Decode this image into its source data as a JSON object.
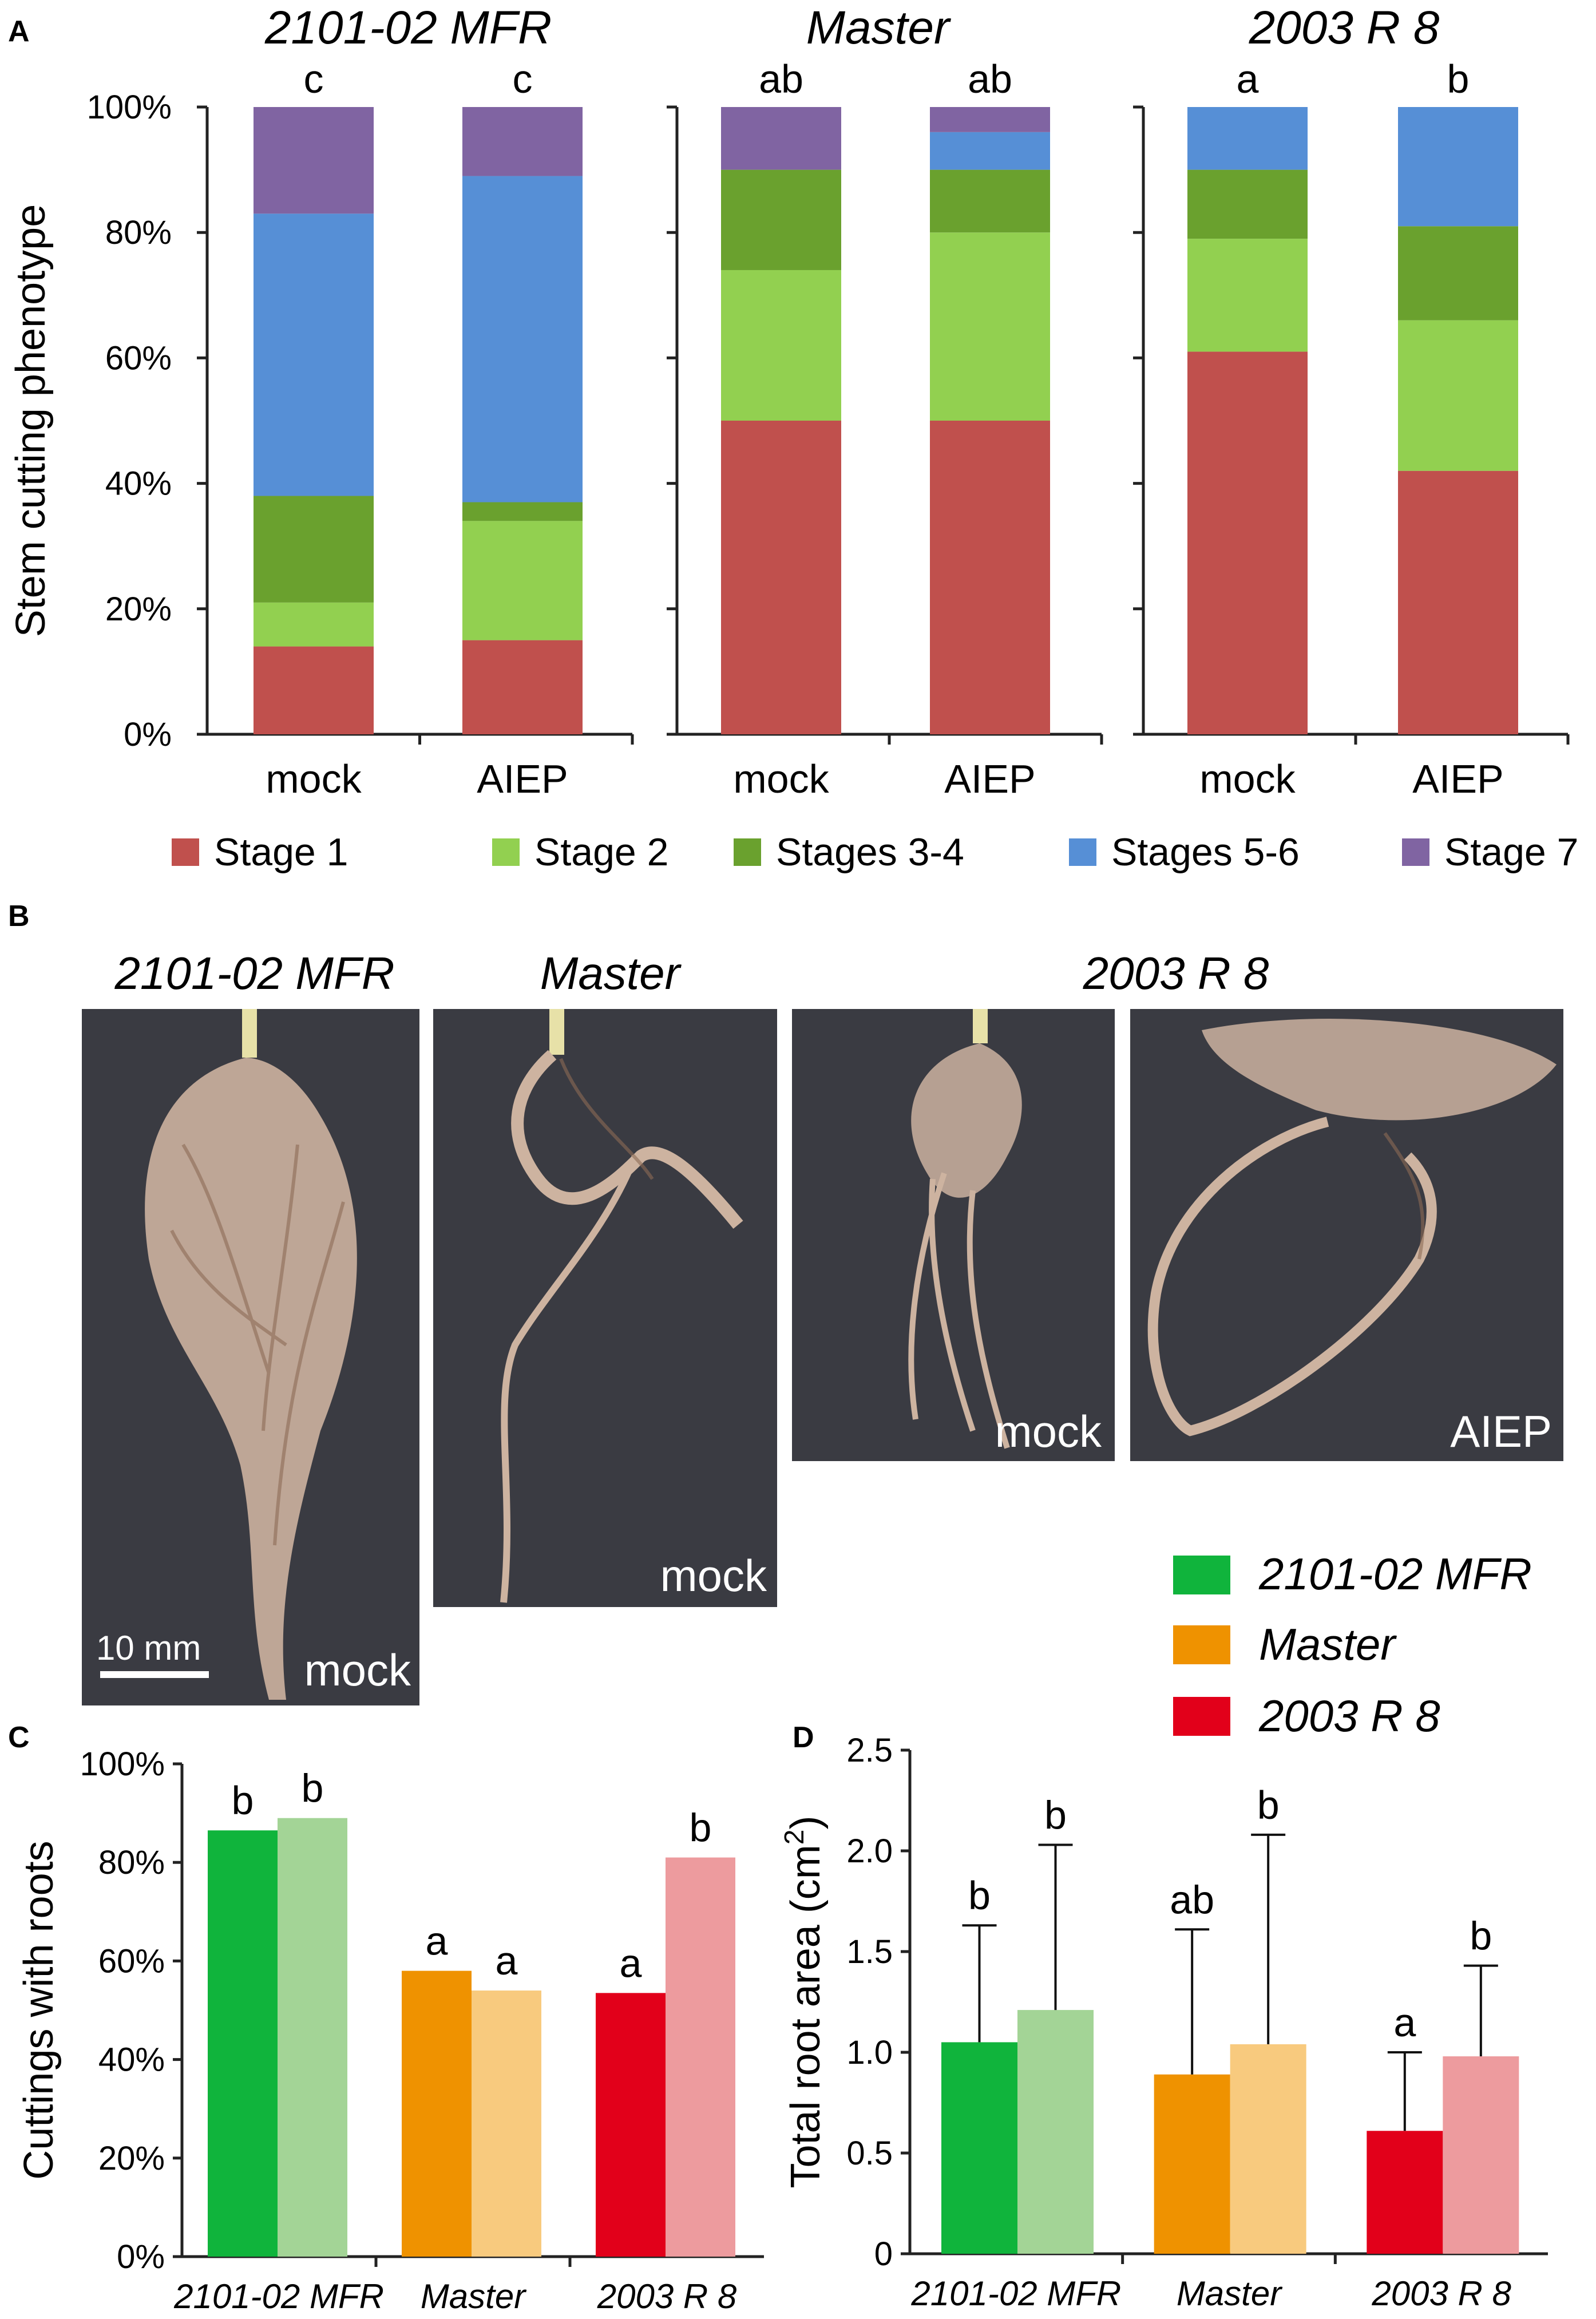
{
  "panels": {
    "a": "A",
    "b": "B",
    "c": "C",
    "d": "D"
  },
  "stage_colors": {
    "Stage 1": "#c0504d",
    "Stage 2": "#92d050",
    "Stages 3-4": "#6aa12e",
    "Stages 5-6": "#568fd6",
    "Stage 7": "#8064a2"
  },
  "chart_data": [
    {
      "id": "A",
      "type": "bar",
      "stacked": true,
      "ylabel": "Stem cutting phenotype",
      "yticks": [
        "0%",
        "20%",
        "40%",
        "60%",
        "80%",
        "100%"
      ],
      "ylim": [
        0,
        100
      ],
      "stages": [
        "Stage 1",
        "Stage 2",
        "Stages 3-4",
        "Stages 5-6",
        "Stage 7"
      ],
      "groups": [
        {
          "title": "2101-02 MFR",
          "bars": [
            {
              "category": "mock",
              "letter": "c",
              "values": [
                14,
                7,
                17,
                45,
                17
              ]
            },
            {
              "category": "AIEP",
              "letter": "c",
              "values": [
                15,
                19,
                3,
                52,
                11
              ]
            }
          ]
        },
        {
          "title": "Master",
          "bars": [
            {
              "category": "mock",
              "letter": "ab",
              "values": [
                50,
                24,
                16,
                0,
                10
              ]
            },
            {
              "category": "AIEP",
              "letter": "ab",
              "values": [
                50,
                30,
                10,
                6,
                4
              ]
            }
          ]
        },
        {
          "title": "2003 R 8",
          "bars": [
            {
              "category": "mock",
              "letter": "a",
              "values": [
                61,
                18,
                11,
                10,
                0
              ]
            },
            {
              "category": "AIEP",
              "letter": "b",
              "values": [
                42,
                24,
                15,
                19,
                0
              ]
            }
          ]
        }
      ],
      "legend": [
        "Stage 1",
        "Stage 2",
        "Stages 3-4",
        "Stages 5-6",
        "Stage 7"
      ],
      "legend_position": "bottom"
    },
    {
      "id": "C",
      "type": "bar",
      "ylabel": "Cuttings with roots",
      "yticks": [
        "0%",
        "20%",
        "40%",
        "60%",
        "80%",
        "100%"
      ],
      "ylim": [
        0,
        100
      ],
      "categories": [
        "2101-02 MFR",
        "Master",
        "2003 R 8"
      ],
      "series": [
        {
          "values": [
            86.5,
            58,
            53.5
          ],
          "letters": [
            "b",
            "a",
            "a"
          ]
        },
        {
          "values": [
            89,
            54,
            81
          ],
          "letters": [
            "b",
            "a",
            "b"
          ]
        }
      ]
    },
    {
      "id": "D",
      "type": "bar",
      "ylabel": "Total root area (cm2)",
      "yticks": [
        "0",
        "0.5",
        "1.0",
        "1.5",
        "2.0",
        "2.5"
      ],
      "ylim": [
        0,
        2.5
      ],
      "categories": [
        "2101-02 MFR",
        "Master",
        "2003 R 8"
      ],
      "series": [
        {
          "values": [
            1.05,
            0.89,
            0.61
          ],
          "errors": [
            0.58,
            0.72,
            0.39
          ],
          "letters": [
            "b",
            "ab",
            "a"
          ]
        },
        {
          "values": [
            1.21,
            1.04,
            0.98
          ],
          "errors": [
            0.82,
            1.04,
            0.45
          ],
          "letters": [
            "b",
            "b",
            "b"
          ]
        }
      ]
    }
  ],
  "bar_colors": [
    {
      "cultivar": "2101-02 MFR",
      "dark": "#10b43c",
      "light": "#a3d496"
    },
    {
      "cultivar": "Master",
      "dark": "#ef9200",
      "light": "#f8ca7e"
    },
    {
      "cultivar": "2003 R 8",
      "dark": "#e2001a",
      "light": "#ed9b9e"
    }
  ],
  "legend_cd": [
    "2101-02 MFR",
    "Master",
    "2003 R 8"
  ],
  "photos": {
    "titles": [
      "2101-02 MFR",
      "Master",
      "2003 R 8"
    ],
    "labels": [
      "mock",
      "mock",
      "mock",
      "AIEP"
    ],
    "scale_bar": "10 mm"
  }
}
